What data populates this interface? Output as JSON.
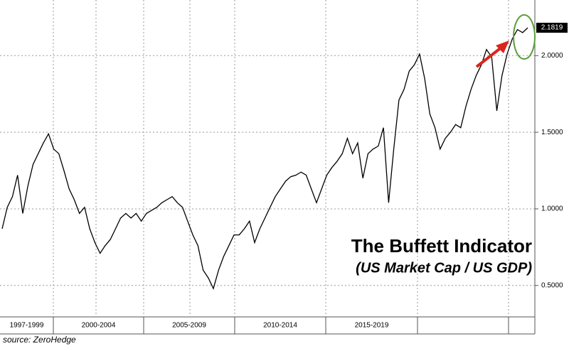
{
  "chart_data": {
    "type": "line",
    "title": "The Buffett Indicator",
    "subtitle": "(US Market Cap / US GDP)",
    "source": "source: ZeroHedge",
    "period_labels": [
      "1997-1999",
      "2000-2004",
      "2005-2009",
      "2010-2014",
      "2015-2019"
    ],
    "series": [
      {
        "name": "US Market Cap / US GDP",
        "color": "#000000",
        "values": [
          0.87,
          1.01,
          1.08,
          1.22,
          0.97,
          1.15,
          1.29,
          1.36,
          1.43,
          1.49,
          1.39,
          1.36,
          1.25,
          1.13,
          1.06,
          0.97,
          1.01,
          0.87,
          0.78,
          0.71,
          0.76,
          0.8,
          0.87,
          0.94,
          0.97,
          0.94,
          0.97,
          0.92,
          0.97,
          0.99,
          1.01,
          1.04,
          1.06,
          1.08,
          1.04,
          1.01,
          0.92,
          0.83,
          0.76,
          0.6,
          0.55,
          0.48,
          0.6,
          0.69,
          0.76,
          0.83,
          0.83,
          0.87,
          0.92,
          0.78,
          0.87,
          0.94,
          1.01,
          1.08,
          1.13,
          1.18,
          1.21,
          1.22,
          1.24,
          1.22,
          1.13,
          1.04,
          1.13,
          1.22,
          1.27,
          1.31,
          1.36,
          1.46,
          1.36,
          1.43,
          1.2,
          1.36,
          1.39,
          1.41,
          1.53,
          1.04,
          1.39,
          1.71,
          1.78,
          1.9,
          1.94,
          2.01,
          1.85,
          1.62,
          1.53,
          1.39,
          1.46,
          1.5,
          1.55,
          1.53,
          1.67,
          1.78,
          1.87,
          1.94,
          2.04,
          1.99,
          1.64,
          1.87,
          2.01,
          2.11,
          2.17,
          2.15,
          2.1819
        ]
      }
    ],
    "ylim": [
      0.295,
      2.363
    ],
    "yticks": [
      {
        "value": 0.5,
        "label": "0.5000"
      },
      {
        "value": 1,
        "label": "1.0000"
      },
      {
        "value": 1.5,
        "label": "1.5000"
      },
      {
        "value": 2,
        "label": "2.0000"
      }
    ],
    "grid": true
  }
}
